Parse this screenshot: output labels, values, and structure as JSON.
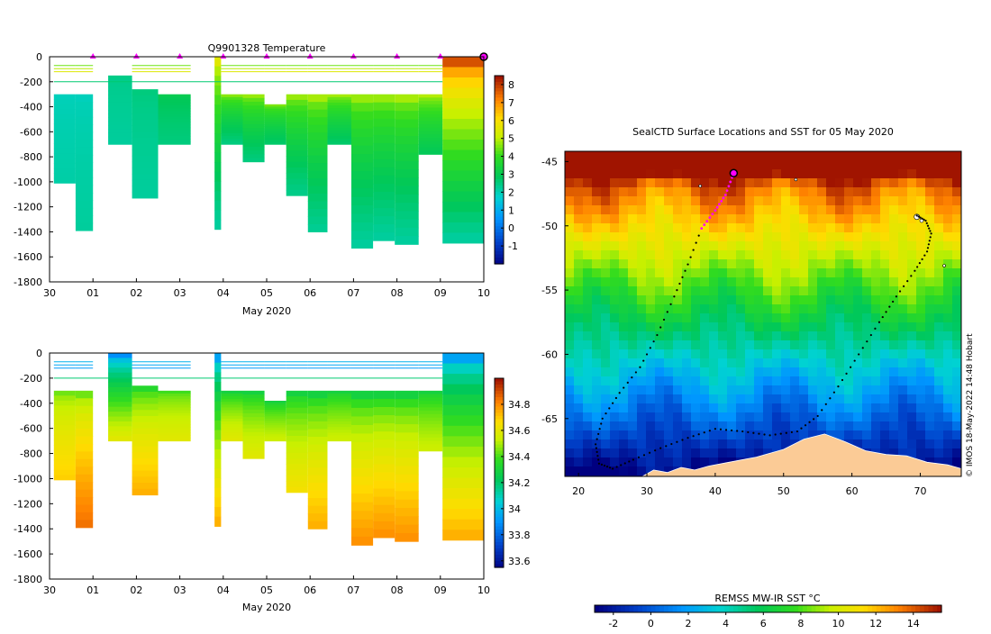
{
  "chart_data": [
    {
      "id": "temperature_section",
      "type": "heatmap",
      "title": "Q9901328  Temperature",
      "xlabel": "May 2020",
      "ylabel": "",
      "xlim": [
        0,
        10
      ],
      "ylim": [
        -1800,
        0
      ],
      "x_tick_labels": [
        "30",
        "01",
        "02",
        "03",
        "04",
        "05",
        "06",
        "07",
        "08",
        "09",
        "10"
      ],
      "y_ticks": [
        0,
        -200,
        -400,
        -600,
        -800,
        -1000,
        -1200,
        -1400,
        -1600,
        -1800
      ],
      "colorbar": {
        "min": -2,
        "max": 8.5,
        "ticks": [
          -1,
          0,
          1,
          2,
          3,
          4,
          5,
          6,
          7,
          8
        ]
      },
      "surface_markers_x": [
        1,
        2,
        3,
        4,
        5,
        6,
        7,
        8,
        9
      ],
      "last_profile_x": 10,
      "profiles": [
        {
          "x0": 0.1,
          "x1": 0.6,
          "top": 300,
          "bottom": 1010,
          "surface": 2.0,
          "deep": 2.2
        },
        {
          "x0": 0.6,
          "x1": 1.0,
          "top": 300,
          "bottom": 1390,
          "surface": 2.0,
          "deep": 2.3
        },
        {
          "x0": 1.35,
          "x1": 1.9,
          "top": 150,
          "bottom": 700,
          "surface": 2.5,
          "deep": 2.3
        },
        {
          "x0": 1.9,
          "x1": 2.5,
          "top": 260,
          "bottom": 1130,
          "surface": 2.6,
          "deep": 2.3
        },
        {
          "x0": 2.5,
          "x1": 3.25,
          "top": 300,
          "bottom": 700,
          "surface": 3.1,
          "deep": 2.6
        },
        {
          "x0": 3.8,
          "x1": 3.95,
          "top": 0,
          "bottom": 1380,
          "surface": 5.6,
          "deep": 2.3
        },
        {
          "x0": 3.95,
          "x1": 4.45,
          "top": 300,
          "bottom": 700,
          "surface": 4.7,
          "deep": 2.6
        },
        {
          "x0": 4.45,
          "x1": 4.95,
          "top": 300,
          "bottom": 840,
          "surface": 4.8,
          "deep": 2.6
        },
        {
          "x0": 4.95,
          "x1": 5.45,
          "top": 380,
          "bottom": 700,
          "surface": 4.6,
          "deep": 2.8
        },
        {
          "x0": 5.45,
          "x1": 5.95,
          "top": 300,
          "bottom": 1110,
          "surface": 4.8,
          "deep": 2.5
        },
        {
          "x0": 5.95,
          "x1": 6.4,
          "top": 300,
          "bottom": 1400,
          "surface": 4.9,
          "deep": 2.4
        },
        {
          "x0": 6.4,
          "x1": 6.95,
          "top": 300,
          "bottom": 700,
          "surface": 4.9,
          "deep": 2.8
        },
        {
          "x0": 6.95,
          "x1": 7.45,
          "top": 300,
          "bottom": 1530,
          "surface": 4.8,
          "deep": 2.3
        },
        {
          "x0": 7.45,
          "x1": 7.95,
          "top": 300,
          "bottom": 1470,
          "surface": 4.8,
          "deep": 2.3
        },
        {
          "x0": 7.95,
          "x1": 8.5,
          "top": 300,
          "bottom": 1500,
          "surface": 4.9,
          "deep": 2.3
        },
        {
          "x0": 8.5,
          "x1": 9.05,
          "top": 300,
          "bottom": 780,
          "surface": 5.0,
          "deep": 3.0
        },
        {
          "x0": 9.05,
          "x1": 10.0,
          "top": 0,
          "bottom": 1490,
          "surface": 7.8,
          "deep": 2.3
        }
      ]
    },
    {
      "id": "salinity_section",
      "type": "heatmap",
      "title": "",
      "xlabel": "May 2020",
      "ylabel": "",
      "xlim": [
        0,
        10
      ],
      "ylim": [
        -1800,
        0
      ],
      "x_tick_labels": [
        "30",
        "01",
        "02",
        "03",
        "04",
        "05",
        "06",
        "07",
        "08",
        "09",
        "10"
      ],
      "y_ticks": [
        0,
        -200,
        -400,
        -600,
        -800,
        -1000,
        -1200,
        -1400,
        -1600,
        -1800
      ],
      "colorbar": {
        "min": 33.55,
        "max": 35.0,
        "ticks": [
          33.6,
          33.8,
          34,
          34.2,
          34.4,
          34.6,
          34.8
        ],
        "tick_labels": [
          "33.6",
          "33.8",
          "34",
          "34.2",
          "34.4",
          "34.6",
          "34.8"
        ]
      },
      "profiles": [
        {
          "x0": 0.1,
          "x1": 0.6,
          "top": 300,
          "bottom": 1010,
          "surface": 34.45,
          "deep": 34.7
        },
        {
          "x0": 0.6,
          "x1": 1.0,
          "top": 300,
          "bottom": 1390,
          "surface": 34.45,
          "deep": 34.85
        },
        {
          "x0": 1.35,
          "x1": 1.9,
          "top": 0,
          "bottom": 700,
          "surface": 33.9,
          "deep": 34.6
        },
        {
          "x0": 1.9,
          "x1": 2.5,
          "top": 260,
          "bottom": 1130,
          "surface": 34.35,
          "deep": 34.75
        },
        {
          "x0": 2.5,
          "x1": 3.25,
          "top": 300,
          "bottom": 700,
          "surface": 34.4,
          "deep": 34.6
        },
        {
          "x0": 3.8,
          "x1": 3.95,
          "top": 0,
          "bottom": 1380,
          "surface": 33.95,
          "deep": 34.75
        },
        {
          "x0": 3.95,
          "x1": 4.45,
          "top": 300,
          "bottom": 700,
          "surface": 34.3,
          "deep": 34.6
        },
        {
          "x0": 4.45,
          "x1": 4.95,
          "top": 300,
          "bottom": 840,
          "surface": 34.3,
          "deep": 34.6
        },
        {
          "x0": 4.95,
          "x1": 5.45,
          "top": 380,
          "bottom": 700,
          "surface": 34.3,
          "deep": 34.55
        },
        {
          "x0": 5.45,
          "x1": 5.95,
          "top": 300,
          "bottom": 1110,
          "surface": 34.3,
          "deep": 34.65
        },
        {
          "x0": 5.95,
          "x1": 6.4,
          "top": 300,
          "bottom": 1400,
          "surface": 34.3,
          "deep": 34.75
        },
        {
          "x0": 6.4,
          "x1": 6.95,
          "top": 300,
          "bottom": 700,
          "surface": 34.3,
          "deep": 34.55
        },
        {
          "x0": 6.95,
          "x1": 7.45,
          "top": 300,
          "bottom": 1530,
          "surface": 34.3,
          "deep": 34.8
        },
        {
          "x0": 7.45,
          "x1": 7.95,
          "top": 300,
          "bottom": 1470,
          "surface": 34.3,
          "deep": 34.8
        },
        {
          "x0": 7.95,
          "x1": 8.5,
          "top": 300,
          "bottom": 1500,
          "surface": 34.3,
          "deep": 34.8
        },
        {
          "x0": 8.5,
          "x1": 9.05,
          "top": 300,
          "bottom": 780,
          "surface": 34.3,
          "deep": 34.55
        },
        {
          "x0": 9.05,
          "x1": 10.0,
          "top": 0,
          "bottom": 1490,
          "surface": 33.95,
          "deep": 34.75
        }
      ]
    },
    {
      "id": "sst_map",
      "type": "heatmap",
      "title": "SealCTD Surface Locations and SST for 05 May 2020",
      "xlabel": "",
      "ylabel": "",
      "xlim": [
        18,
        76
      ],
      "ylim": [
        -69.5,
        -44.2
      ],
      "x_ticks": [
        20,
        30,
        40,
        50,
        60,
        70
      ],
      "y_ticks": [
        -45,
        -50,
        -55,
        -60,
        -65
      ],
      "y_tick_labels": [
        "-45",
        "-50",
        "-55",
        "-60",
        "-65"
      ],
      "colorbar": {
        "label": "REMSS MW-IR SST °C",
        "min": -3,
        "max": 15.5,
        "ticks": [
          -2,
          0,
          2,
          4,
          6,
          8,
          10,
          12,
          14
        ]
      },
      "current_position": {
        "lon": 42.7,
        "lat": -45.9
      },
      "track": [
        {
          "lon": 69.5,
          "lat": -49.2
        },
        {
          "lon": 70.8,
          "lat": -49.6
        },
        {
          "lon": 71.6,
          "lat": -50.6
        },
        {
          "lon": 71.0,
          "lat": -52.0
        },
        {
          "lon": 69.2,
          "lat": -53.5
        },
        {
          "lon": 66.5,
          "lat": -55.5
        },
        {
          "lon": 64.0,
          "lat": -57.5
        },
        {
          "lon": 61.0,
          "lat": -60.0
        },
        {
          "lon": 58.0,
          "lat": -62.5
        },
        {
          "lon": 55.0,
          "lat": -64.8
        },
        {
          "lon": 52.0,
          "lat": -66.0
        },
        {
          "lon": 48.0,
          "lat": -66.3
        },
        {
          "lon": 44.0,
          "lat": -66.0
        },
        {
          "lon": 40.0,
          "lat": -65.8
        },
        {
          "lon": 36.0,
          "lat": -66.5
        },
        {
          "lon": 32.0,
          "lat": -67.3
        },
        {
          "lon": 28.0,
          "lat": -68.2
        },
        {
          "lon": 25.0,
          "lat": -68.9
        },
        {
          "lon": 23.0,
          "lat": -68.5
        },
        {
          "lon": 22.5,
          "lat": -67.0
        },
        {
          "lon": 23.5,
          "lat": -65.0
        },
        {
          "lon": 26.0,
          "lat": -63.0
        },
        {
          "lon": 29.0,
          "lat": -61.0
        },
        {
          "lon": 31.5,
          "lat": -58.5
        },
        {
          "lon": 34.0,
          "lat": -55.5
        },
        {
          "lon": 36.0,
          "lat": -53.0
        },
        {
          "lon": 38.0,
          "lat": -50.2
        },
        {
          "lon": 40.0,
          "lat": -48.8
        },
        {
          "lon": 41.5,
          "lat": -47.6
        },
        {
          "lon": 42.7,
          "lat": -45.9
        }
      ],
      "recent_track_start_index": 26
    }
  ],
  "copyright": "© IMOS 18-May-2022 14:48 Hobart",
  "colors": {
    "marker": "#ff00ff",
    "land": "#fbcb96",
    "track": "#000000"
  }
}
